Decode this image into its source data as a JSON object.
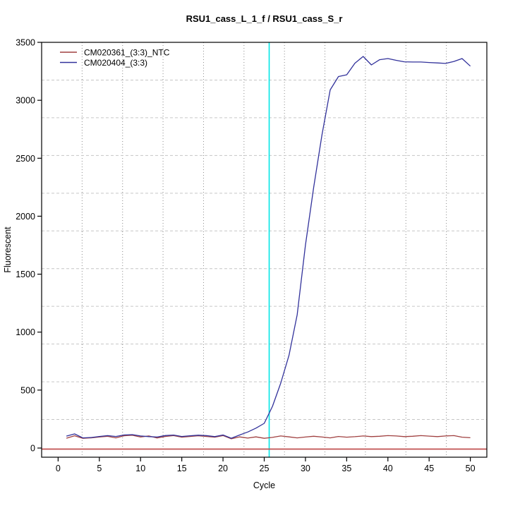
{
  "title": "RSU1_cass_L_1_f / RSU1_cass_S_r",
  "x_axis": {
    "label": "Cycle",
    "ticks": [
      0,
      5,
      10,
      15,
      20,
      25,
      30,
      35,
      40,
      45,
      50
    ]
  },
  "y_axis": {
    "label": "Fluorescent",
    "ticks": [
      0,
      500,
      1000,
      1500,
      2000,
      2500,
      3000,
      3500
    ]
  },
  "legend": [
    {
      "label": "CM020361_(3:3)_NTC",
      "color": "#a04040"
    },
    {
      "label": "CM020404_(3:3)",
      "color": "#32329b"
    }
  ],
  "colors": {
    "axis": "#000000",
    "grid_vertical": "#8a8a8a",
    "grid_horizontal": "#c6c6c6",
    "cyan_marker": "#00e6e6",
    "threshold_line": "#c05050",
    "background": "#ffffff"
  },
  "chart_data": {
    "type": "line",
    "title": "RSU1_cass_L_1_f / RSU1_cass_S_r",
    "xlabel": "Cycle",
    "ylabel": "Fluorescent",
    "xlim": [
      -2,
      52
    ],
    "ylim": [
      -79,
      3500
    ],
    "grid": {
      "nx": 11,
      "ny": 11,
      "vertical_style": "dotted",
      "horizontal_style": "dashed"
    },
    "legend_position": "top-left",
    "x": [
      1,
      2,
      3,
      4,
      5,
      6,
      7,
      8,
      9,
      10,
      11,
      12,
      13,
      14,
      15,
      16,
      17,
      18,
      19,
      20,
      21,
      22,
      23,
      24,
      25,
      26,
      27,
      28,
      29,
      30,
      31,
      32,
      33,
      34,
      35,
      36,
      37,
      38,
      39,
      40,
      41,
      42,
      43,
      44,
      45,
      46,
      47,
      48,
      49,
      50
    ],
    "series": [
      {
        "name": "CM020361_(3:3)_NTC",
        "color": "#a04040",
        "values": [
          85,
          106,
          84,
          88,
          95,
          101,
          88,
          106,
          110,
          95,
          104,
          87,
          100,
          108,
          94,
          100,
          106,
          100,
          94,
          108,
          80,
          96,
          86,
          96,
          84,
          92,
          104,
          96,
          88,
          95,
          102,
          95,
          88,
          100,
          94,
          98,
          104,
          99,
          102,
          107,
          104,
          99,
          102,
          107,
          103,
          99,
          104,
          107,
          94,
          89
        ]
      },
      {
        "name": "CM020404_(3:3)",
        "color": "#32329b",
        "values": [
          103,
          122,
          88,
          91,
          100,
          107,
          100,
          113,
          116,
          104,
          99,
          95,
          108,
          112,
          100,
          106,
          111,
          107,
          99,
          113,
          85,
          112,
          138,
          172,
          213,
          360,
          560,
          800,
          1150,
          1750,
          2250,
          2700,
          3090,
          3205,
          3220,
          3320,
          3378,
          3305,
          3350,
          3360,
          3345,
          3332,
          3330,
          3330,
          3326,
          3322,
          3318,
          3335,
          3360,
          3295
        ]
      }
    ],
    "vertical_marker": {
      "x": 25.6,
      "color": "#00e6e6"
    },
    "horizontal_line": {
      "y": 0,
      "color": "#c05050"
    }
  }
}
